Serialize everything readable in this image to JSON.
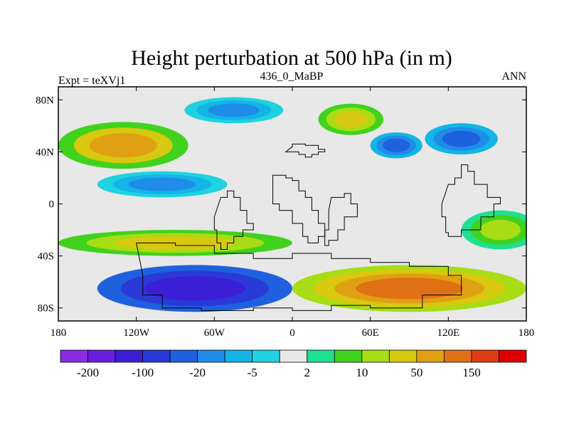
{
  "chart_data": {
    "type": "heatmap",
    "title": "Height perturbation at 500 hPa (in m)",
    "left_label": "Expt = teXVj1",
    "center_label": "436_0_MaBP",
    "right_label": "ANN",
    "x_range": [
      -180,
      180
    ],
    "y_range": [
      -90,
      90
    ],
    "x_ticks": [
      {
        "value": -180,
        "label": "180"
      },
      {
        "value": -120,
        "label": "120W"
      },
      {
        "value": -60,
        "label": "60W"
      },
      {
        "value": 0,
        "label": "0"
      },
      {
        "value": 60,
        "label": "60E"
      },
      {
        "value": 120,
        "label": "120E"
      },
      {
        "value": 180,
        "label": "180"
      }
    ],
    "y_ticks": [
      {
        "value": 80,
        "label": "80N"
      },
      {
        "value": 40,
        "label": "40N"
      },
      {
        "value": 0,
        "label": "0"
      },
      {
        "value": -40,
        "label": "40S"
      },
      {
        "value": -80,
        "label": "80S"
      }
    ],
    "colorbar": {
      "colors": [
        "#8a2be2",
        "#6a1fe0",
        "#3b1fd6",
        "#2a3ad6",
        "#1f60df",
        "#1f8ce8",
        "#14b4e6",
        "#1fd2e0",
        "#e8e8e8",
        "#1ee090",
        "#40d21c",
        "#a8dc14",
        "#d8c810",
        "#e0a014",
        "#e07014",
        "#e03c14",
        "#e00000"
      ],
      "labels": [
        {
          "after": 1,
          "text": "-200"
        },
        {
          "after": 3,
          "text": "-100"
        },
        {
          "after": 5,
          "text": "-20"
        },
        {
          "after": 7,
          "text": "-5"
        },
        {
          "after": 9,
          "text": "2"
        },
        {
          "after": 11,
          "text": "10"
        },
        {
          "after": 13,
          "text": "50"
        },
        {
          "after": 15,
          "text": "150"
        }
      ]
    },
    "regions": [
      {
        "name": "north-pacific-high",
        "cx": -130,
        "cy": 45,
        "rx": 50,
        "ry": 18,
        "levels": [
          10,
          12,
          13
        ]
      },
      {
        "name": "north-atlantic-low",
        "cx": -45,
        "cy": 72,
        "rx": 38,
        "ry": 10,
        "levels": [
          7,
          6,
          5
        ]
      },
      {
        "name": "arctic-ridge",
        "cx": 45,
        "cy": 65,
        "rx": 25,
        "ry": 12,
        "levels": [
          10,
          11,
          12
        ]
      },
      {
        "name": "siberia-low",
        "cx": 80,
        "cy": 45,
        "rx": 20,
        "ry": 10,
        "levels": [
          6,
          5,
          4
        ]
      },
      {
        "name": "east-asia-low",
        "cx": 130,
        "cy": 50,
        "rx": 28,
        "ry": 12,
        "levels": [
          6,
          5,
          4
        ]
      },
      {
        "name": "tropical-pacific-low",
        "cx": -100,
        "cy": 15,
        "rx": 50,
        "ry": 10,
        "levels": [
          7,
          6,
          5
        ]
      },
      {
        "name": "southern-mid-ridge",
        "cx": -90,
        "cy": -30,
        "rx": 90,
        "ry": 10,
        "levels": [
          10,
          11,
          12
        ]
      },
      {
        "name": "east-pacific-rise",
        "cx": 160,
        "cy": -20,
        "rx": 30,
        "ry": 15,
        "levels": [
          9,
          10,
          11
        ]
      },
      {
        "name": "southern-ocean-low",
        "cx": -75,
        "cy": -65,
        "rx": 75,
        "ry": 18,
        "levels": [
          4,
          3,
          2
        ]
      },
      {
        "name": "antarctic-high",
        "cx": 90,
        "cy": -65,
        "rx": 90,
        "ry": 18,
        "levels": [
          11,
          12,
          13,
          14
        ]
      }
    ]
  }
}
